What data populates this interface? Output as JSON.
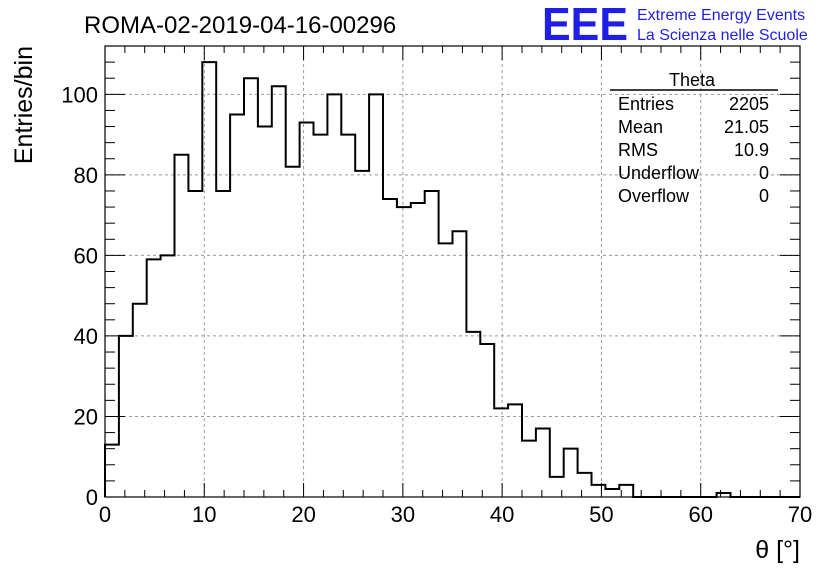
{
  "logo": {
    "mark": "EEE",
    "line1": "Extreme Energy Events",
    "line2": "La Scienza nelle Scuole",
    "color": "#1f1fe6"
  },
  "stats": {
    "title": "Theta",
    "rows": [
      {
        "label": "Entries",
        "value": "2205"
      },
      {
        "label": "Mean",
        "value": "21.05"
      },
      {
        "label": "RMS",
        "value": "10.9"
      },
      {
        "label": "Underflow",
        "value": "0"
      },
      {
        "label": "Overflow",
        "value": "0"
      }
    ]
  },
  "chart_data": {
    "type": "bar",
    "histogram": true,
    "title": "ROMA-02-2019-04-16-00296",
    "xlabel": "θ [°]",
    "ylabel": "Entries/bin",
    "xlim": [
      0,
      70
    ],
    "ylim": [
      0,
      112
    ],
    "xticks": [
      0,
      10,
      20,
      30,
      40,
      50,
      60,
      70
    ],
    "yticks": [
      0,
      20,
      40,
      60,
      80,
      100
    ],
    "grid": true,
    "bin_width": 1.4,
    "values": [
      13,
      40,
      48,
      59,
      60,
      85,
      76,
      108,
      76,
      95,
      104,
      92,
      102,
      82,
      93,
      90,
      100,
      90,
      81,
      100,
      74,
      72,
      73,
      76,
      63,
      66,
      41,
      38,
      22,
      23,
      14,
      17,
      5,
      12,
      6,
      3,
      2,
      3,
      0,
      0,
      0,
      0,
      0,
      0,
      1,
      0,
      0,
      0,
      0,
      0
    ],
    "line_color": "#000000",
    "grid_color": "#9a9a9a"
  }
}
